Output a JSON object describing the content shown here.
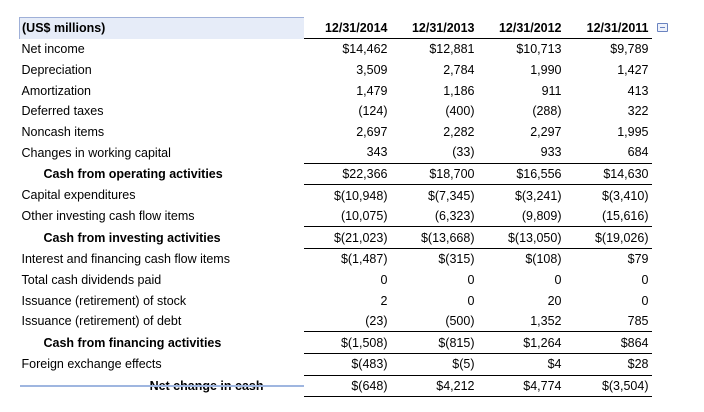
{
  "header": {
    "label": "(US$ millions)",
    "periods": [
      "12/31/2014",
      "12/31/2013",
      "12/31/2012",
      "12/31/2011"
    ]
  },
  "rows": [
    {
      "label": "Net income",
      "values": [
        "$14,462",
        "$12,881",
        "$10,713",
        "$9,789"
      ]
    },
    {
      "label": "Depreciation",
      "values": [
        "3,509",
        "2,784",
        "1,990",
        "1,427"
      ]
    },
    {
      "label": "Amortization",
      "values": [
        "1,479",
        "1,186",
        "911",
        "413"
      ]
    },
    {
      "label": "Deferred taxes",
      "values": [
        "(124)",
        "(400)",
        "(288)",
        "322"
      ]
    },
    {
      "label": "Noncash items",
      "values": [
        "2,697",
        "2,282",
        "2,297",
        "1,995"
      ]
    },
    {
      "label": "Changes in working capital",
      "values": [
        "343",
        "(33)",
        "933",
        "684"
      ]
    },
    {
      "label": "Cash from operating activities",
      "values": [
        "$22,366",
        "$18,700",
        "$16,556",
        "$14,630"
      ]
    },
    {
      "label": "Capital expenditures",
      "values": [
        "$(10,948)",
        "$(7,345)",
        "$(3,241)",
        "$(3,410)"
      ]
    },
    {
      "label": "Other investing cash flow items",
      "values": [
        "(10,075)",
        "(6,323)",
        "(9,809)",
        "(15,616)"
      ]
    },
    {
      "label": "Cash from investing activities",
      "values": [
        "$(21,023)",
        "$(13,668)",
        "$(13,050)",
        "$(19,026)"
      ]
    },
    {
      "label": "Interest and financing cash flow items",
      "values": [
        "$(1,487)",
        "$(315)",
        "$(108)",
        "$79"
      ]
    },
    {
      "label": "Total cash dividends paid",
      "values": [
        "0",
        "0",
        "0",
        "0"
      ]
    },
    {
      "label": "Issuance (retirement) of stock",
      "values": [
        "2",
        "0",
        "20",
        "0"
      ]
    },
    {
      "label": "Issuance (retirement) of debt",
      "values": [
        "(23)",
        "(500)",
        "1,352",
        "785"
      ]
    },
    {
      "label": "Cash from financing activities",
      "values": [
        "$(1,508)",
        "$(815)",
        "$1,264",
        "$864"
      ]
    },
    {
      "label": "Foreign exchange effects",
      "values": [
        "$(483)",
        "$(5)",
        "$4",
        "$28"
      ]
    },
    {
      "label": "Net change in cash",
      "values": [
        "$(648)",
        "$4,212",
        "$4,774",
        "$(3,504)"
      ]
    }
  ]
}
